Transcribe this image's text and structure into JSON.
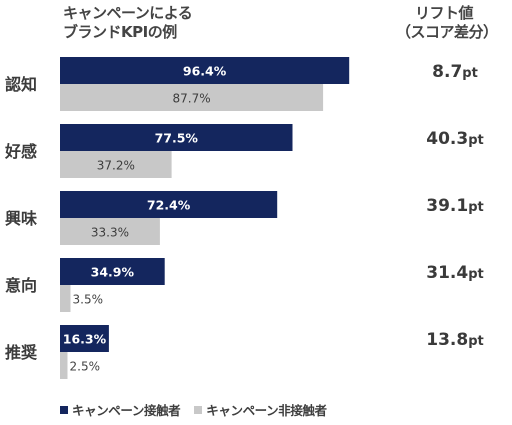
{
  "header": {
    "title_line1": "キャンペーンによる",
    "title_line2": "ブランドKPIの例",
    "lift_line1": "リフト値",
    "lift_line2": "（スコア差分）"
  },
  "colors": {
    "exposed": "#14265e",
    "unexposed": "#c8c8c8"
  },
  "chart_data": {
    "type": "bar",
    "orientation": "horizontal",
    "categories": [
      "認知",
      "好感",
      "興味",
      "意向",
      "推奨"
    ],
    "series": [
      {
        "name": "キャンペーン接触者",
        "values": [
          96.4,
          77.5,
          72.4,
          34.9,
          16.3
        ],
        "labels": [
          "96.4%",
          "77.5%",
          "72.4%",
          "34.9%",
          "16.3%"
        ]
      },
      {
        "name": "キャンペーン非接触者",
        "values": [
          87.7,
          37.2,
          33.3,
          3.5,
          2.5
        ],
        "labels": [
          "87.7%",
          "37.2%",
          "33.3%",
          "3.5%",
          "2.5%"
        ]
      }
    ],
    "lift": {
      "values": [
        "8.7",
        "40.3",
        "39.1",
        "31.4",
        "13.8"
      ],
      "unit": "pt"
    },
    "xlim": [
      0,
      100
    ],
    "grid": false,
    "legend_position": "bottom-left"
  }
}
